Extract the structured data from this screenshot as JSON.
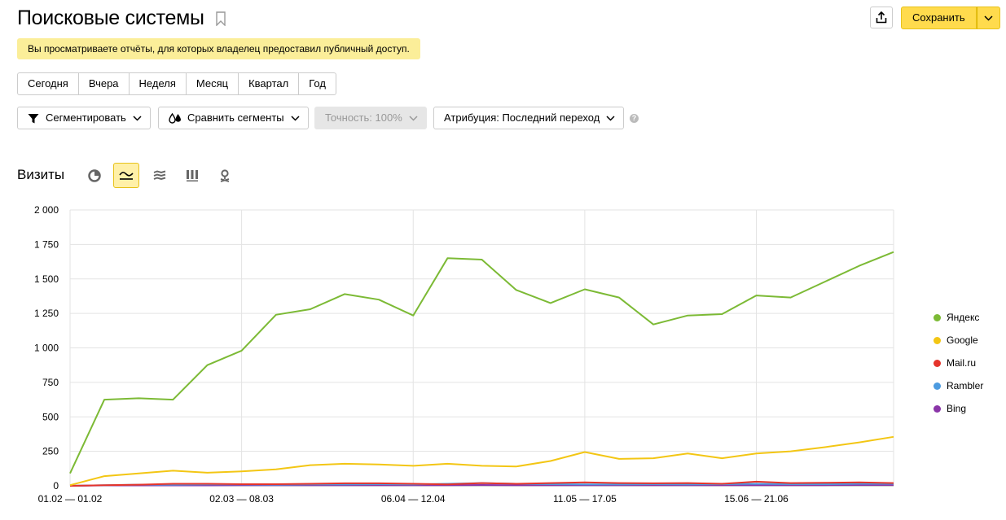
{
  "header": {
    "title": "Поисковые системы",
    "save_label": "Сохранить"
  },
  "notice": "Вы просматриваете отчёты, для которых владелец предоставил публичный доступ.",
  "periods": [
    "Сегодня",
    "Вчера",
    "Неделя",
    "Месяц",
    "Квартал",
    "Год"
  ],
  "filters": {
    "segment": "Сегментировать",
    "compare": "Сравнить сегменты",
    "accuracy": "Точность: 100%",
    "attribution": "Атрибуция: Последний переход"
  },
  "metric_title": "Визиты",
  "chart_data": {
    "type": "line",
    "ylim": [
      0,
      2000
    ],
    "yticks": [
      "2 000",
      "1 750",
      "1 500",
      "1 250",
      "1 000",
      "750",
      "500",
      "250",
      "0"
    ],
    "xtick_labels": [
      "01.02 — 01.02",
      "02.03 — 08.03",
      "06.04 — 12.04",
      "11.05 — 17.05",
      "15.06 — 21.06"
    ],
    "grid": true,
    "legend_position": "right",
    "series": [
      {
        "name": "Яндекс",
        "color": "#7cba35",
        "values": [
          90,
          625,
          635,
          625,
          875,
          980,
          1240,
          1280,
          1390,
          1350,
          1235,
          1650,
          1640,
          1420,
          1325,
          1425,
          1365,
          1170,
          1235,
          1245,
          1380,
          1365,
          1480,
          1595,
          1695
        ]
      },
      {
        "name": "Google",
        "color": "#f3c614",
        "values": [
          5,
          70,
          90,
          110,
          95,
          105,
          120,
          150,
          160,
          155,
          145,
          160,
          145,
          140,
          180,
          245,
          195,
          200,
          235,
          200,
          235,
          250,
          280,
          315,
          355
        ]
      },
      {
        "name": "Mail.ru",
        "color": "#e5342b",
        "values": [
          0,
          5,
          8,
          15,
          15,
          12,
          12,
          15,
          18,
          18,
          15,
          10,
          20,
          15,
          20,
          25,
          20,
          18,
          20,
          15,
          30,
          20,
          22,
          25,
          20
        ]
      },
      {
        "name": "Rambler",
        "color": "#4c9be0",
        "values": [
          0,
          5,
          8,
          8,
          10,
          10,
          8,
          10,
          10,
          12,
          10,
          15,
          20,
          15,
          12,
          10,
          10,
          12,
          10,
          12,
          15,
          12,
          12,
          15,
          15
        ]
      },
      {
        "name": "Bing",
        "color": "#8a35a8",
        "values": [
          0,
          3,
          3,
          3,
          3,
          4,
          4,
          4,
          4,
          5,
          4,
          5,
          6,
          5,
          5,
          5,
          5,
          5,
          5,
          5,
          5,
          5,
          5,
          6,
          6
        ]
      }
    ]
  }
}
